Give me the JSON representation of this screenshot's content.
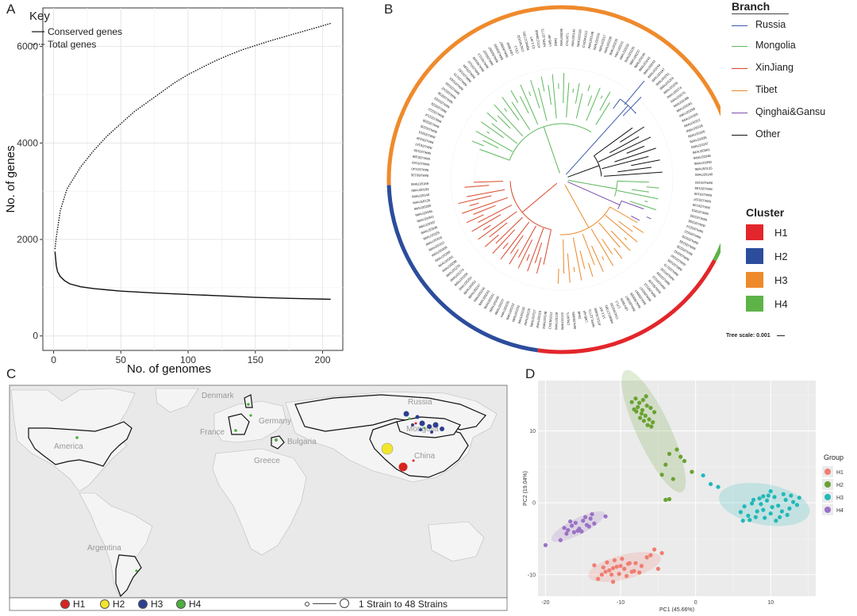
{
  "panels": {
    "a": "A",
    "b": "B",
    "c": "C",
    "d": "D"
  },
  "panelA": {
    "key_title": "Key",
    "legend": [
      "Conserved genes",
      "Total genes"
    ]
  },
  "chart_data": [
    {
      "type": "line",
      "xlabel": "No. of genomes",
      "ylabel": "No. of genes",
      "xlim": [
        -8,
        215
      ],
      "ylim": [
        -300,
        6800
      ],
      "xticks": [
        0,
        50,
        100,
        150,
        200
      ],
      "yticks": [
        0,
        2000,
        4000,
        6000
      ],
      "grid": true,
      "legend_position": "top-left",
      "series": [
        {
          "name": "Conserved genes",
          "style": "solid",
          "x": [
            1,
            2,
            3,
            5,
            8,
            12,
            20,
            30,
            50,
            75,
            100,
            125,
            150,
            175,
            206
          ],
          "y": [
            1750,
            1450,
            1330,
            1230,
            1150,
            1080,
            1020,
            980,
            930,
            890,
            860,
            830,
            800,
            780,
            760
          ]
        },
        {
          "name": "Total genes",
          "style": "dotted",
          "x": [
            1,
            2,
            5,
            10,
            20,
            30,
            40,
            50,
            60,
            70,
            80,
            90,
            100,
            110,
            120,
            130,
            140,
            150,
            160,
            170,
            180,
            190,
            200,
            206
          ],
          "y": [
            1800,
            2050,
            2600,
            3050,
            3500,
            3850,
            4150,
            4400,
            4650,
            4850,
            5050,
            5250,
            5420,
            5560,
            5700,
            5820,
            5930,
            6020,
            6110,
            6190,
            6270,
            6350,
            6430,
            6480
          ]
        }
      ]
    },
    {
      "type": "scatter",
      "xlabel": "PC1 (45.66%)",
      "ylabel": "PC2 (19.04%)",
      "xlim": [
        -21,
        16
      ],
      "ylim": [
        -13,
        17
      ],
      "xticks": [
        -20,
        -10,
        0,
        10
      ],
      "yticks": [
        -10,
        0,
        10
      ],
      "legend_title": "Group",
      "legend_position": "right",
      "grid": true,
      "series": [
        {
          "name": "H1",
          "color": "#f07d72",
          "x": [
            -13,
            -12.5,
            -12,
            -11.5,
            -11,
            -10.5,
            -10,
            -9.5,
            -9,
            -8.5,
            -8,
            -12.3,
            -11.2,
            -10.2,
            -9.2,
            -8.2,
            -7.2,
            -6.5,
            -5.5,
            -4.5,
            -11.8,
            -10.8,
            -9.8,
            -8.8,
            -7.5,
            -13.5,
            -11,
            -6,
            -5
          ],
          "y": [
            -10.6,
            -10,
            -9.6,
            -9.4,
            -9.1,
            -8.9,
            -8.8,
            -9.2,
            -8.5,
            -9.6,
            -8.4,
            -9,
            -10,
            -9.9,
            -10.2,
            -9.5,
            -8.8,
            -7.6,
            -6.5,
            -7,
            -8.3,
            -8,
            -7.8,
            -8.4,
            -9.7,
            -8.7,
            -11,
            -7.3,
            -9.2
          ]
        },
        {
          "name": "H2",
          "color": "#6aa232",
          "x": [
            -8.5,
            -8,
            -7.5,
            -7,
            -6.5,
            -6,
            -5.5,
            -8.2,
            -7.7,
            -7.2,
            -6.7,
            -6.2,
            -5.7,
            -7.9,
            -7.4,
            -6.9,
            -6.4,
            -5.9,
            -6.6,
            -7.1,
            -3.5,
            -2.5,
            -2,
            -1.5,
            -0.5,
            -4,
            -4.5,
            -3,
            -4,
            -3.5
          ],
          "y": [
            14,
            14.5,
            13.9,
            14.3,
            13.5,
            13.2,
            12.6,
            13,
            13.3,
            12.4,
            12.1,
            11.6,
            11.2,
            12.7,
            11.8,
            11.4,
            10.8,
            10.6,
            14.8,
            12.9,
            6.8,
            7.4,
            6.4,
            5.8,
            4.3,
            5.3,
            3.9,
            3.3,
            0.4,
            0.5
          ]
        },
        {
          "name": "H3",
          "color": "#22b8b8",
          "x": [
            6,
            6.5,
            7,
            7.5,
            8,
            8.5,
            9,
            9.5,
            10,
            10.5,
            11,
            11.5,
            12,
            12.5,
            13,
            13.5,
            7.2,
            8.2,
            9.2,
            10.2,
            11.2,
            12.2,
            7.7,
            8.7,
            9.7,
            10.7,
            11.7,
            12.7,
            9,
            10,
            1,
            2,
            3,
            6.3,
            13.8
          ],
          "y": [
            -1.3,
            -0.5,
            -1.8,
            -0.1,
            -2,
            0.6,
            -1,
            0.3,
            -1.5,
            0.8,
            -0.4,
            -1.2,
            0.4,
            -0.8,
            0.1,
            -0.3,
            -2.4,
            -1.2,
            -2.1,
            -0.6,
            -2,
            -1.7,
            0.4,
            -0.2,
            1,
            -2.5,
            1.2,
            1,
            0.9,
            1.6,
            3.8,
            2.6,
            2.2,
            -2.5,
            0.7
          ]
        },
        {
          "name": "H4",
          "color": "#9b72c4",
          "x": [
            -17.5,
            -17,
            -16.5,
            -16,
            -15.5,
            -15,
            -14.5,
            -14,
            -13.5,
            -17.2,
            -16.2,
            -15.2,
            -14.2,
            -16.7,
            -15.7,
            -14.7,
            -13.8,
            -18,
            -20,
            -12
          ],
          "y": [
            -3.5,
            -3.8,
            -3.2,
            -2.8,
            -3.6,
            -2.5,
            -3.1,
            -2.2,
            -2.9,
            -4.3,
            -4.1,
            -4,
            -3.3,
            -2.6,
            -3.9,
            -2,
            -1.6,
            -5.2,
            -5.9,
            -1.9
          ]
        }
      ]
    }
  ],
  "panelB": {
    "branch_title": "Branch",
    "branches": [
      {
        "label": "Russia",
        "color": "#3d5ba9"
      },
      {
        "label": "Mongolia",
        "color": "#5cb85c"
      },
      {
        "label": "XinJiang",
        "color": "#d9472b"
      },
      {
        "label": "Tibet",
        "color": "#e8892a"
      },
      {
        "label": "Qinghai&Gansu",
        "color": "#7b52ab"
      },
      {
        "label": "Other",
        "color": "#111111"
      }
    ],
    "cluster_title": "Cluster",
    "clusters": [
      {
        "label": "H1",
        "color": "#e3262b"
      },
      {
        "label": "H2",
        "color": "#2c4d9c"
      },
      {
        "label": "H3",
        "color": "#ef8a2c"
      },
      {
        "label": "H4",
        "color": "#5db348"
      }
    ],
    "tree_scale": "Tree scale: 0.001",
    "tip_labels_outer": [
      "IMAU50135",
      "IMAU20140",
      "IMAU20183",
      "IMAU20189",
      "IMAU20195",
      "IMAU20197",
      "IMAU20199",
      "IMAU20201",
      "IMAU20205",
      "IMAU20208",
      "IMAU20214",
      "IMAU20222",
      "IMAU20229",
      "IMAU20233",
      "IMAU20238",
      "IMAU20242"
    ],
    "tip_labels_right": [
      "IMAU20160",
      "IMAU20165",
      "IMAU20170",
      "IMAU20192",
      "IMAU20184",
      "IMAU20110",
      "IMAU50109",
      "IMAU50113",
      "IMAU50107",
      "IMAU50097",
      "IMAU50099",
      "IMAU60967",
      "LBV3849",
      "CFL1",
      "CNCM1532",
      "RBMCC7281",
      "13.1-WT",
      "ATCC39468",
      "NRRL12773",
      "LMB-BF",
      "ZB48",
      "IMAU50095",
      "CNLM71",
      "IMAU20142",
      "IMAU20139",
      "CNCM1012",
      "IMAU20148"
    ],
    "tip_labels_left": [
      "IMAU20215",
      "IMAU20217",
      "IMAU20226",
      "IMAU20230",
      "IMAU20231",
      "IMAU20232",
      "IMAU20235",
      "IMAU20237",
      "IMAU20240",
      "IMAU20241",
      "IMAU20243",
      "IMAU20244",
      "IMAU20247",
      "IMAU20251",
      "IMAU20253",
      "IMAU20256",
      "IMAU20274",
      "IMAU20276",
      "IMAU20288",
      "IMAU20291",
      "IMAU20298",
      "IMAU20306",
      "IMAU20312",
      "IMAU20318",
      "IMAU20326",
      "IMAU20335",
      "IMAU20337",
      "IMAU20341",
      "IMAU20346",
      "IMAU20350"
    ]
  },
  "panelC": {
    "countries": [
      {
        "label": "Denmark"
      },
      {
        "label": "Germany"
      },
      {
        "label": "France"
      },
      {
        "label": "Bulgaria"
      },
      {
        "label": "Greece"
      },
      {
        "label": "Russia"
      },
      {
        "label": "Mongolia"
      },
      {
        "label": "China"
      },
      {
        "label": "America"
      },
      {
        "label": "Argentina"
      }
    ],
    "legend": [
      {
        "label": "H1",
        "color": "#d8241f"
      },
      {
        "label": "H2",
        "color": "#f2e62a"
      },
      {
        "label": "H3",
        "color": "#2e3f8f"
      },
      {
        "label": "H4",
        "color": "#4caf3e"
      }
    ],
    "size_legend": "1 Strain to  48 Strains"
  }
}
